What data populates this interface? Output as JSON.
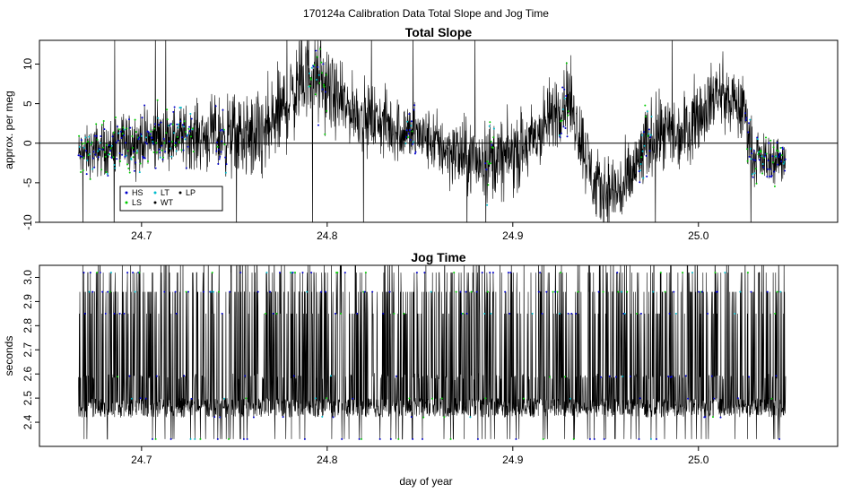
{
  "figure": {
    "title": "170124a   Calibration Data Total Slope and Jog Time",
    "xlabel": "day of year"
  },
  "colors": {
    "trace": "#000000",
    "HS": "#0000cc",
    "LS": "#00cc00",
    "LT": "#00bbcc",
    "WT": "#000000",
    "LP": "#000000",
    "zero_line": "#000000"
  },
  "chart_data": [
    {
      "type": "line",
      "title": "Total Slope",
      "xlabel": "",
      "ylabel": "approx. per meg",
      "xlim": [
        24.645,
        25.075
      ],
      "ylim": [
        -10,
        13
      ],
      "xticks": [
        24.7,
        24.8,
        24.9,
        25.0
      ],
      "xtick_labels": [
        "24.7",
        "24.8",
        "24.9",
        "25.0"
      ],
      "yticks": [
        -10,
        -5,
        0,
        5,
        10
      ],
      "ytick_labels": [
        "-10",
        "-5",
        "0",
        "5",
        "10"
      ],
      "hline": 0,
      "legend": {
        "position": "bottom-left",
        "entries": [
          "HS",
          "LT",
          "LP",
          "LS",
          "WT"
        ]
      },
      "x_start": 24.666,
      "x_end": 25.047,
      "envelope": {
        "x": [
          24.666,
          24.69,
          24.72,
          24.745,
          24.765,
          24.79,
          24.81,
          24.835,
          24.85,
          24.875,
          24.895,
          24.91,
          24.93,
          24.945,
          24.96,
          24.975,
          24.99,
          25.01,
          25.025,
          25.03,
          25.047
        ],
        "mid": [
          -1.5,
          0,
          1,
          1,
          0.5,
          9,
          4.5,
          2,
          1,
          -2,
          -2,
          0,
          6,
          -6,
          -6,
          1,
          1,
          6.5,
          4,
          -2,
          -2
        ],
        "amp": [
          2.5,
          3,
          3,
          4,
          5,
          4.5,
          3.5,
          3.5,
          3,
          4,
          4,
          4,
          4,
          4,
          4,
          4,
          4,
          3.5,
          3.5,
          2.5,
          2.5
        ]
      },
      "series": [
        {
          "name": "HS",
          "marker": "point"
        },
        {
          "name": "LS",
          "marker": "point"
        },
        {
          "name": "LT",
          "marker": "point"
        },
        {
          "name": "WT",
          "marker": "point"
        },
        {
          "name": "LP",
          "marker": "point"
        }
      ]
    },
    {
      "type": "line",
      "title": "Jog Time",
      "xlabel": "day of year",
      "ylabel": "seconds",
      "xlim": [
        24.645,
        25.075
      ],
      "ylim": [
        2.3,
        3.05
      ],
      "xticks": [
        24.7,
        24.8,
        24.9,
        25.0
      ],
      "xtick_labels": [
        "24.7",
        "24.8",
        "24.9",
        "25.0"
      ],
      "yticks": [
        2.4,
        2.5,
        2.6,
        2.7,
        2.8,
        2.9,
        3.0
      ],
      "ytick_labels": [
        "2.4",
        "2.5",
        "2.6",
        "2.7",
        "2.8",
        "2.9",
        "3.0"
      ],
      "x_start": 24.666,
      "x_end": 25.047,
      "levels": [
        2.33,
        2.42,
        2.5,
        2.59,
        2.85,
        2.94,
        3.02
      ],
      "dense_band": [
        2.42,
        2.5
      ]
    }
  ]
}
